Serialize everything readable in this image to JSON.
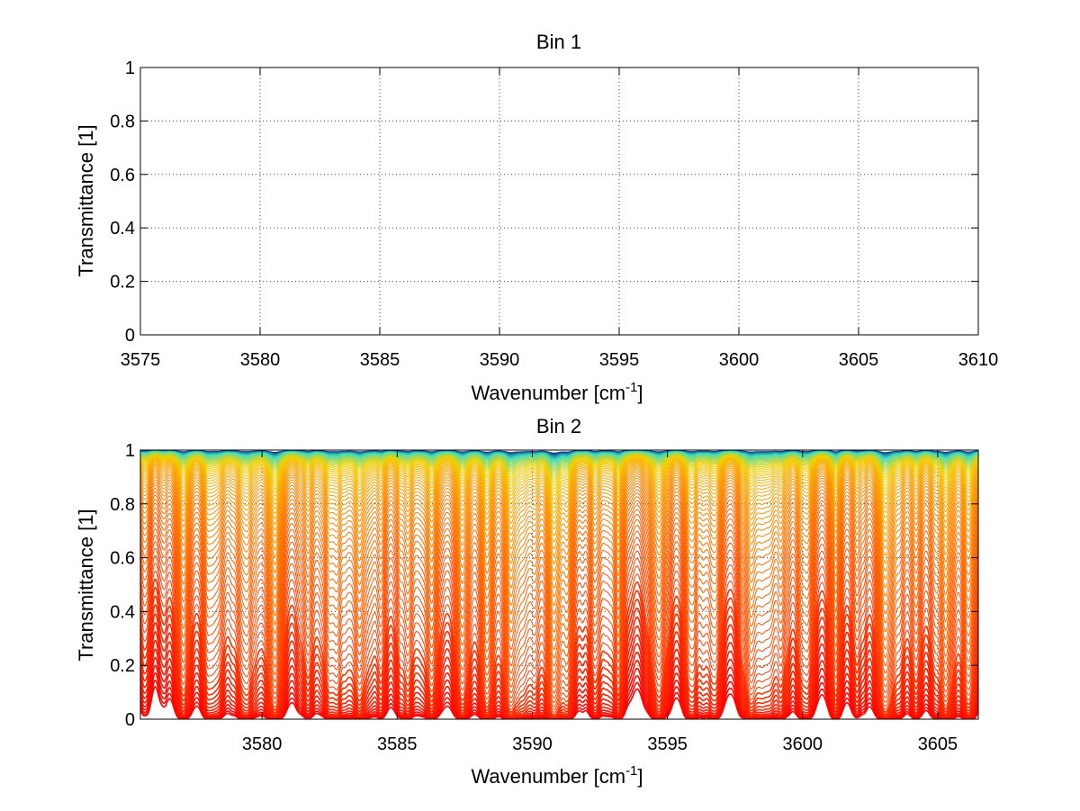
{
  "chart_data": [
    {
      "type": "line",
      "title": "Bin 1",
      "xlabel": "Wavenumber [cm",
      "xlabel_sup": "-1",
      "xlabel_end": "]",
      "ylabel": "Transmittance [1]",
      "xlim": [
        3575,
        3610
      ],
      "ylim": [
        0,
        1
      ],
      "x_ticks": [
        3575,
        3580,
        3585,
        3590,
        3595,
        3600,
        3605,
        3610
      ],
      "y_ticks": [
        0,
        0.2,
        0.4,
        0.6,
        0.8,
        1
      ],
      "y_tick_labels": [
        "0",
        "0.2",
        "0.4",
        "0.6",
        "0.8",
        "1"
      ],
      "grid": true,
      "series": []
    },
    {
      "type": "line",
      "title": "Bin 2",
      "xlabel": "Wavenumber [cm",
      "xlabel_sup": "-1",
      "xlabel_end": "]",
      "ylabel": "Transmittance [1]",
      "xlim": [
        3575.5,
        3606.5
      ],
      "ylim": [
        0,
        1
      ],
      "x_ticks": [
        3580,
        3585,
        3590,
        3595,
        3600,
        3605
      ],
      "y_ticks": [
        0,
        0.2,
        0.4,
        0.6,
        0.8,
        1
      ],
      "y_tick_labels": [
        "0",
        "0.2",
        "0.4",
        "0.6",
        "0.8",
        "1"
      ],
      "grid": true,
      "series_description": "Family of ~80 transmittance spectra, colored from blue (nearly transparent, T≈1) through cyan/yellow/orange to red (nearly opaque, T≈0); absorption lines appear as downward dips.",
      "num_curves": 80,
      "absorption_lines": [
        {
          "x": 3577.1,
          "depth": 0.55,
          "width": 0.25
        },
        {
          "x": 3578.4,
          "depth": 0.45,
          "width": 0.25
        },
        {
          "x": 3579.5,
          "depth": 0.35,
          "width": 0.2
        },
        {
          "x": 3580.5,
          "depth": 0.9,
          "width": 0.22
        },
        {
          "x": 3581.7,
          "depth": 0.55,
          "width": 0.22
        },
        {
          "x": 3582.5,
          "depth": 0.45,
          "width": 0.2
        },
        {
          "x": 3583.6,
          "depth": 0.8,
          "width": 0.22
        },
        {
          "x": 3584.4,
          "depth": 0.5,
          "width": 0.2
        },
        {
          "x": 3585.4,
          "depth": 0.6,
          "width": 0.22
        },
        {
          "x": 3586.3,
          "depth": 0.5,
          "width": 0.2
        },
        {
          "x": 3587.4,
          "depth": 0.85,
          "width": 0.24
        },
        {
          "x": 3588.3,
          "depth": 0.5,
          "width": 0.2
        },
        {
          "x": 3589.2,
          "depth": 0.75,
          "width": 0.22
        },
        {
          "x": 3590.1,
          "depth": 0.4,
          "width": 0.2
        },
        {
          "x": 3590.8,
          "depth": 0.98,
          "width": 0.22
        },
        {
          "x": 3591.3,
          "depth": 0.8,
          "width": 0.2
        },
        {
          "x": 3592.3,
          "depth": 0.55,
          "width": 0.2
        },
        {
          "x": 3593.2,
          "depth": 0.5,
          "width": 0.2
        },
        {
          "x": 3594.7,
          "depth": 0.75,
          "width": 0.22
        },
        {
          "x": 3595.8,
          "depth": 0.45,
          "width": 0.2
        },
        {
          "x": 3596.8,
          "depth": 0.55,
          "width": 0.22
        },
        {
          "x": 3598.1,
          "depth": 0.75,
          "width": 0.22
        },
        {
          "x": 3599.2,
          "depth": 0.55,
          "width": 0.2
        },
        {
          "x": 3600.2,
          "depth": 0.6,
          "width": 0.22
        },
        {
          "x": 3601.2,
          "depth": 0.5,
          "width": 0.2
        },
        {
          "x": 3602.0,
          "depth": 0.45,
          "width": 0.2
        },
        {
          "x": 3603.1,
          "depth": 0.95,
          "width": 0.26
        },
        {
          "x": 3604.2,
          "depth": 0.6,
          "width": 0.22
        },
        {
          "x": 3605.3,
          "depth": 0.7,
          "width": 0.22
        },
        {
          "x": 3606.1,
          "depth": 0.55,
          "width": 0.2
        }
      ],
      "colors": {
        "transparent_end": "#00207f",
        "mid_cyan": "#40e0c0",
        "mid_yellow": "#f0d000",
        "mid_orange": "#ff8c00",
        "opaque_end": "#ff0000"
      }
    }
  ]
}
